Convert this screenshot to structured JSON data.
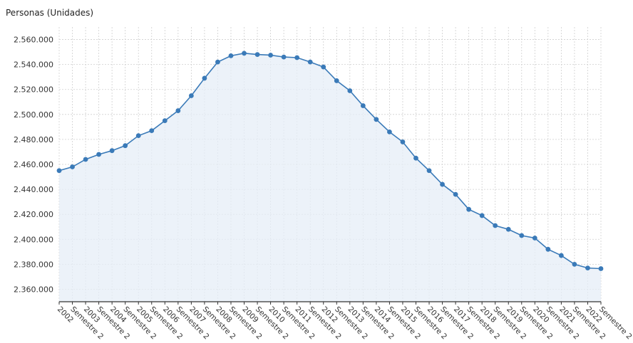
{
  "chart_data": {
    "type": "area",
    "ylabel": "Personas (Unidades)",
    "ylim": [
      2350000,
      2570000
    ],
    "yticks": [
      2360000,
      2380000,
      2400000,
      2420000,
      2440000,
      2460000,
      2480000,
      2500000,
      2520000,
      2540000,
      2560000
    ],
    "ytick_labels": [
      "2.360.000",
      "2.380.000",
      "2.400.000",
      "2.420.000",
      "2.440.000",
      "2.460.000",
      "2.480.000",
      "2.500.000",
      "2.520.000",
      "2.540.000",
      "2.560.000"
    ],
    "categories": [
      "2002",
      "Semestre 2",
      "2003",
      "Semestre 2",
      "2004",
      "Semestre 2",
      "2005",
      "Semestre 2",
      "2006",
      "Semestre 2",
      "2007",
      "Semestre 2",
      "2008",
      "Semestre 2",
      "2009",
      "Semestre 2",
      "2010",
      "Semestre 2",
      "2011",
      "Semestre 2",
      "2012",
      "Semestre 2",
      "2013",
      "Semestre 2",
      "2014",
      "Semestre 2",
      "2015",
      "Semestre 2",
      "2016",
      "Semestre 2",
      "2017",
      "Semestre 2",
      "2018",
      "Semestre 2",
      "2019",
      "Semestre 2",
      "2020",
      "Semestre 2",
      "2021",
      "Semestre 2",
      "2022",
      "Semestre 2"
    ],
    "values": [
      2455000,
      2458000,
      2464000,
      2468000,
      2471000,
      2475000,
      2483000,
      2487000,
      2495000,
      2503000,
      2515000,
      2529000,
      2542000,
      2547000,
      2549000,
      2548000,
      2547500,
      2546000,
      2545500,
      2542000,
      2538000,
      2527000,
      2519000,
      2507000,
      2496000,
      2486000,
      2478000,
      2465000,
      2455000,
      2444000,
      2436000,
      2424000,
      2419000,
      2411000,
      2408000,
      2403000,
      2401000,
      2392000,
      2387000,
      2380000,
      2377000,
      2376500
    ],
    "grid": true,
    "line_color": "#3a7ab8",
    "fill_color": "#e6eef7"
  }
}
